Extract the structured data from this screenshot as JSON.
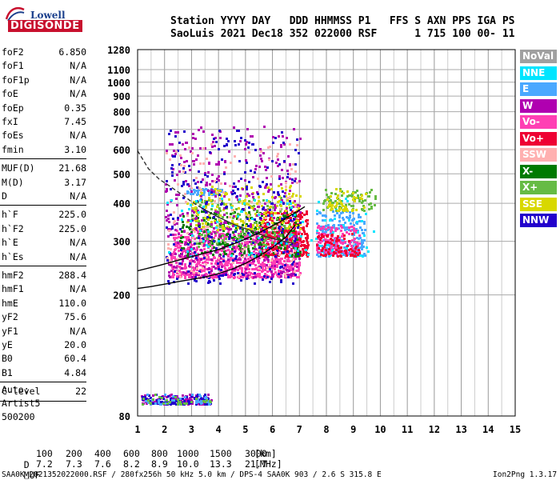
{
  "logo": {
    "top": "Lowell",
    "bottom": "DIGISONDE"
  },
  "header": {
    "line1": "Station YYYY DAY   DDD HHMMSS P1   FFS S AXN PPS IGA PS",
    "line2": "SaoLuis 2021 Dec18 352 022000 RSF      1 715 100 00- 11"
  },
  "params_a": [
    {
      "name": "foF2",
      "value": "6.850"
    },
    {
      "name": "foF1",
      "value": "N/A"
    },
    {
      "name": "foF1p",
      "value": "N/A"
    },
    {
      "name": "foE",
      "value": "N/A"
    },
    {
      "name": "foEp",
      "value": "0.35"
    },
    {
      "name": "fxI",
      "value": "7.45"
    },
    {
      "name": "foEs",
      "value": "N/A"
    },
    {
      "name": "fmin",
      "value": "3.10"
    }
  ],
  "params_b": [
    {
      "name": "MUF(D)",
      "value": "21.68"
    },
    {
      "name": "M(D)",
      "value": "3.17"
    },
    {
      "name": "D",
      "value": "N/A"
    }
  ],
  "params_c": [
    {
      "name": "h`F",
      "value": "225.0"
    },
    {
      "name": "h`F2",
      "value": "225.0"
    },
    {
      "name": "h`E",
      "value": "N/A"
    },
    {
      "name": "h`Es",
      "value": "N/A"
    }
  ],
  "params_d": [
    {
      "name": "hmF2",
      "value": "288.4"
    },
    {
      "name": "hmF1",
      "value": "N/A"
    },
    {
      "name": "hmE",
      "value": "110.0"
    },
    {
      "name": "yF2",
      "value": "75.6"
    },
    {
      "name": "yF1",
      "value": "N/A"
    },
    {
      "name": "yE",
      "value": "20.0"
    },
    {
      "name": "B0",
      "value": "60.4"
    },
    {
      "name": "B1",
      "value": "4.84"
    }
  ],
  "params_e": [
    {
      "name": "C-level",
      "value": "22"
    }
  ],
  "auto": {
    "label": "Auto:",
    "artist": "Artist5",
    "version": "500200"
  },
  "legend": [
    {
      "label": "NoVal",
      "color": "#a0a0a0"
    },
    {
      "label": "NNE",
      "color": "#00e5ff"
    },
    {
      "label": "E",
      "color": "#4aa8ff"
    },
    {
      "label": "W",
      "color": "#b000b0"
    },
    {
      "label": "Vo-",
      "color": "#ff3fb4"
    },
    {
      "label": "Vo+",
      "color": "#ee0033"
    },
    {
      "label": "SSW",
      "color": "#ffb0b0"
    },
    {
      "label": "X-",
      "color": "#007a00"
    },
    {
      "label": "X+",
      "color": "#66bb44"
    },
    {
      "label": "SSE",
      "color": "#d8d800"
    },
    {
      "label": "NNW",
      "color": "#2200cc"
    }
  ],
  "muf_table": {
    "d_label": "D",
    "d_values": [
      "100",
      "200",
      "400",
      "600",
      "800",
      "1000",
      "1500",
      "3000"
    ],
    "d_unit": "[km]",
    "muf_label": "MUF",
    "muf_values": [
      "7.2",
      "7.3",
      "7.6",
      "8.2",
      "8.9",
      "10.0",
      "13.3",
      "21.7"
    ],
    "muf_unit": "[MHz]"
  },
  "footer": {
    "left": "SAA0K_2021352022000.RSF / 280fx256h 50 kHz 5.0 km / DPS-4 SAA0K 903 / 2.6 S 315.8 E",
    "right": "Ion2Png 1.3.17"
  },
  "chart_data": {
    "type": "scatter",
    "title": "",
    "xlabel": "",
    "ylabel": "",
    "xlim": [
      1,
      15
    ],
    "ylim": [
      80,
      1280
    ],
    "x_scale": "linear",
    "y_scale": "log",
    "grid": true,
    "legend_position": "right",
    "x_ticks": [
      "1",
      "2",
      "3",
      "4",
      "5",
      "6",
      "7",
      "8",
      "9",
      "10",
      "11",
      "12",
      "13",
      "14",
      "15"
    ],
    "y_ticks": [
      "80",
      "200",
      "300",
      "400",
      "500",
      "600",
      "700",
      "800",
      "900",
      "1000",
      "1100",
      "1280"
    ],
    "clusters": [
      {
        "name": "E",
        "x": [
          2.8,
          4.2
        ],
        "y": [
          430,
          450
        ],
        "n": 60
      },
      {
        "name": "Vo-",
        "x": [
          2.2,
          7.0
        ],
        "y": [
          230,
          330
        ],
        "n": 900
      },
      {
        "name": "Vo+",
        "x": [
          5.5,
          7.3
        ],
        "y": [
          270,
          380
        ],
        "n": 300
      },
      {
        "name": "X-",
        "x": [
          2.5,
          7.0
        ],
        "y": [
          270,
          380
        ],
        "n": 220
      },
      {
        "name": "X+",
        "x": [
          3.0,
          6.8
        ],
        "y": [
          290,
          420
        ],
        "n": 160
      },
      {
        "name": "SSE",
        "x": [
          2.8,
          7.0
        ],
        "y": [
          330,
          460
        ],
        "n": 200
      },
      {
        "name": "W",
        "x": [
          2.0,
          7.0
        ],
        "y": [
          230,
          720
        ],
        "n": 420
      },
      {
        "name": "NNW",
        "x": [
          2.0,
          7.0
        ],
        "y": [
          220,
          700
        ],
        "n": 260
      },
      {
        "name": "E",
        "x": [
          7.6,
          9.4
        ],
        "y": [
          270,
          380
        ],
        "n": 200
      },
      {
        "name": "Vo-",
        "x": [
          7.6,
          9.2
        ],
        "y": [
          275,
          340
        ],
        "n": 150
      },
      {
        "name": "SSW",
        "x": [
          2.0,
          7.0
        ],
        "y": [
          230,
          640
        ],
        "n": 140
      },
      {
        "name": "NNE",
        "x": [
          2.0,
          9.8
        ],
        "y": [
          270,
          420
        ],
        "n": 100
      },
      {
        "name": "Vo+",
        "x": [
          7.6,
          9.2
        ],
        "y": [
          270,
          320
        ],
        "n": 80
      },
      {
        "name": "X+",
        "x": [
          7.8,
          9.8
        ],
        "y": [
          380,
          450
        ],
        "n": 80
      },
      {
        "name": "SSE",
        "x": [
          8.0,
          9.5
        ],
        "y": [
          380,
          450
        ],
        "n": 50
      },
      {
        "name": "W",
        "x": [
          1.1,
          3.7
        ],
        "y": [
          88,
          95
        ],
        "n": 110
      },
      {
        "name": "NNW",
        "x": [
          1.1,
          3.7
        ],
        "y": [
          88,
          95
        ],
        "n": 90
      },
      {
        "name": "E",
        "x": [
          1.1,
          3.7
        ],
        "y": [
          88,
          95
        ],
        "n": 40
      },
      {
        "name": "X+",
        "x": [
          1.1,
          3.7
        ],
        "y": [
          88,
          95
        ],
        "n": 30
      }
    ],
    "o_trace": {
      "x": [
        1.0,
        1.5,
        2.0,
        2.5,
        3.0,
        3.5,
        4.0,
        4.5,
        5.0,
        5.5,
        6.0,
        6.5,
        6.85
      ],
      "y": [
        210,
        213,
        217,
        221,
        225,
        229,
        235,
        243,
        254,
        268,
        286,
        310,
        340
      ]
    },
    "x_trace": {
      "x": [
        1.0,
        1.8,
        2.5,
        3.2,
        4.0,
        4.8,
        5.5,
        6.2,
        6.9,
        7.2
      ],
      "y": [
        240,
        250,
        260,
        270,
        282,
        300,
        320,
        345,
        375,
        390
      ]
    },
    "model_dashed": {
      "x": [
        1.0,
        1.4,
        1.8,
        2.2,
        2.6,
        3.0,
        3.4
      ],
      "y": [
        595,
        520,
        480,
        455,
        430,
        405,
        385
      ]
    },
    "model_solid": {
      "x": [
        3.4,
        4.0,
        4.6,
        5.2,
        5.8,
        6.4,
        6.85
      ],
      "y": [
        385,
        360,
        340,
        325,
        310,
        300,
        295
      ]
    }
  }
}
